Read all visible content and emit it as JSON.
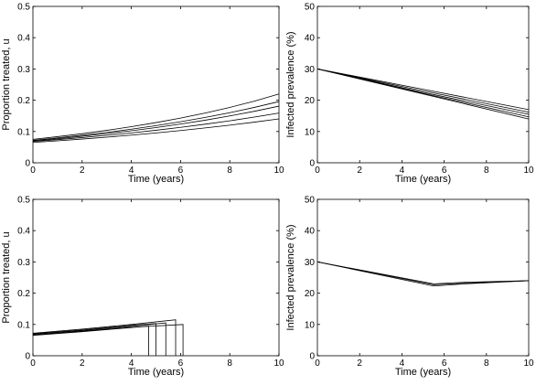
{
  "chart_data": [
    {
      "type": "line",
      "xlabel": "Time (years)",
      "ylabel": "Proportion treated, u",
      "xlim": [
        0,
        10
      ],
      "ylim": [
        0,
        0.5
      ],
      "xticks": [
        0,
        2,
        4,
        6,
        8,
        10
      ],
      "yticks": [
        0,
        0.1,
        0.2,
        0.3,
        0.4,
        0.5
      ],
      "x": [
        0,
        1,
        2,
        3,
        4,
        5,
        6,
        7,
        8,
        9,
        10
      ],
      "series": [
        {
          "color": "#000000",
          "values": [
            0.075,
            0.0835,
            0.093,
            0.1036,
            0.1154,
            0.1285,
            0.143,
            0.159,
            0.177,
            0.197,
            0.22
          ]
        },
        {
          "color": "#000000",
          "values": [
            0.072,
            0.0796,
            0.0879,
            0.0972,
            0.1074,
            0.1187,
            0.1312,
            0.145,
            0.1602,
            0.1771,
            0.1957
          ]
        },
        {
          "color": "#000000",
          "values": [
            0.07,
            0.077,
            0.0847,
            0.0931,
            0.1024,
            0.1126,
            0.1239,
            0.1362,
            0.1498,
            0.1647,
            0.1811
          ]
        },
        {
          "color": "#000000",
          "values": [
            0.068,
            0.074,
            0.0806,
            0.0877,
            0.0955,
            0.104,
            0.1132,
            0.1233,
            0.1342,
            0.1461,
            0.159
          ]
        },
        {
          "color": "#000000",
          "values": [
            0.065,
            0.0702,
            0.0758,
            0.0819,
            0.0884,
            0.0955,
            0.1031,
            0.1114,
            0.1203,
            0.1299,
            0.1403
          ]
        }
      ]
    },
    {
      "type": "line",
      "xlabel": "Time (years)",
      "ylabel": "Infected prevalence (%)",
      "xlim": [
        0,
        10
      ],
      "ylim": [
        0,
        50
      ],
      "xticks": [
        0,
        2,
        4,
        6,
        8,
        10
      ],
      "yticks": [
        0,
        10,
        20,
        30,
        40,
        50
      ],
      "x": [
        0,
        5,
        10
      ],
      "series": [
        {
          "color": "#000000",
          "values": [
            30,
            23.5,
            17
          ]
        },
        {
          "color": "#000000",
          "values": [
            30,
            23,
            16.2
          ]
        },
        {
          "color": "#000000",
          "values": [
            30,
            22.5,
            15.5
          ]
        },
        {
          "color": "#000000",
          "values": [
            30,
            22.2,
            14.7
          ]
        },
        {
          "color": "#000000",
          "values": [
            30,
            22,
            14
          ]
        }
      ]
    },
    {
      "type": "line",
      "xlabel": "Time (years)",
      "ylabel": "Proportion treated, u",
      "xlim": [
        0,
        10
      ],
      "ylim": [
        0,
        0.5
      ],
      "xticks": [
        0,
        2,
        4,
        6,
        8,
        10
      ],
      "yticks": [
        0,
        0.1,
        0.2,
        0.3,
        0.4,
        0.5
      ],
      "series": [
        {
          "color": "#000000",
          "x": [
            0,
            2,
            4,
            4.7,
            4.7
          ],
          "values": [
            0.065,
            0.077,
            0.09,
            0.095,
            0
          ]
        },
        {
          "color": "#000000",
          "x": [
            0,
            2,
            4,
            5.0,
            5.0
          ],
          "values": [
            0.07,
            0.082,
            0.097,
            0.103,
            0
          ]
        },
        {
          "color": "#000000",
          "x": [
            0,
            2,
            4,
            5.4,
            5.4
          ],
          "values": [
            0.068,
            0.08,
            0.094,
            0.105,
            0
          ]
        },
        {
          "color": "#000000",
          "x": [
            0,
            2,
            4,
            5.8,
            5.8
          ],
          "values": [
            0.072,
            0.085,
            0.1,
            0.115,
            0
          ]
        },
        {
          "color": "#000000",
          "x": [
            0,
            2,
            4,
            6.1,
            6.1
          ],
          "values": [
            0.066,
            0.078,
            0.091,
            0.1,
            0
          ]
        }
      ]
    },
    {
      "type": "line",
      "xlabel": "Time (years)",
      "ylabel": "Infected prevalence (%)",
      "xlim": [
        0,
        10
      ],
      "ylim": [
        0,
        50
      ],
      "xticks": [
        0,
        2,
        4,
        6,
        8,
        10
      ],
      "yticks": [
        0,
        10,
        20,
        30,
        40,
        50
      ],
      "x": [
        0,
        5.5,
        7,
        10
      ],
      "series": [
        {
          "color": "#000000",
          "values": [
            30,
            23,
            23.5,
            24
          ]
        },
        {
          "color": "#000000",
          "values": [
            30,
            22.7,
            23.2,
            24
          ]
        },
        {
          "color": "#000000",
          "values": [
            30,
            22.3,
            23,
            24
          ]
        }
      ]
    }
  ]
}
